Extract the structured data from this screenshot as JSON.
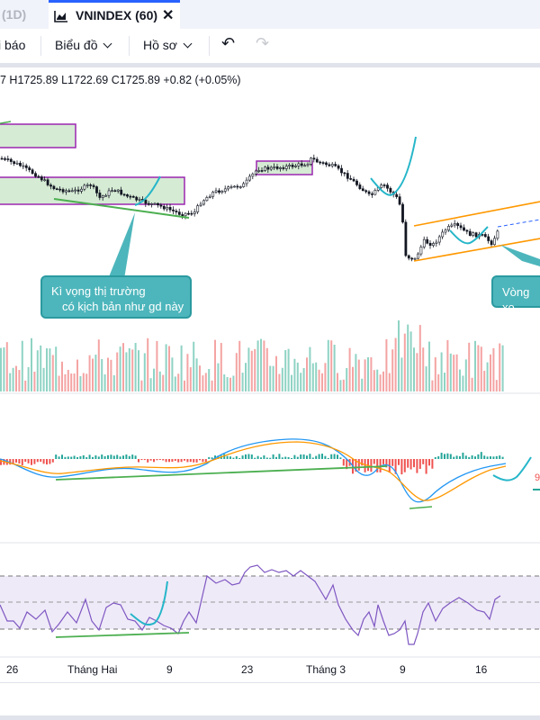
{
  "tabs": {
    "previous_label": "(1D)",
    "active_title": "VNINDEX (60)",
    "close_symbol": "✕"
  },
  "toolbar": {
    "alert_label": "i báo",
    "chart_label": "Biểu đồ",
    "profile_label": "Hồ sơ",
    "undo_symbol": "↶",
    "redo_symbol": "↷"
  },
  "ohlc_text": "7  H1725.89  L1722.69  C1725.89  +0.82 (+0.05%)",
  "callouts": [
    {
      "line1": "Kì vọng thị trường",
      "line2": "có kịch bản như gd này"
    },
    {
      "line1": "Vòng xo",
      "line2": ""
    }
  ],
  "x_axis_labels": [
    "26",
    "Tháng Hai",
    "9",
    "23",
    "Tháng 3",
    "9",
    "16"
  ],
  "colors": {
    "up": "#26a69a",
    "down": "#ef5350",
    "volume_up": "#8fd3c4",
    "volume_down": "#f4a4a3",
    "macd_line": "#2196f3",
    "signal_line": "#ff9800",
    "rsi_line": "#7e57c2",
    "zone_fill": "#d5ebd4",
    "zone_border": "#9c27b0",
    "trend_green": "#4caf50",
    "projection_cyan": "#26b6c9",
    "channel_orange": "#ff9800"
  }
}
